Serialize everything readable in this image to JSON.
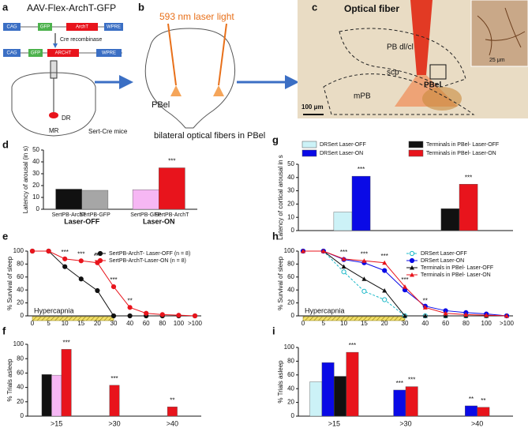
{
  "panels": {
    "a": {
      "letter": "a",
      "title": "AAV-Flex-ArchT-GFP",
      "construct_1": [
        "CAG",
        "GFP",
        "ArchT",
        "WPRE"
      ],
      "cre": "Cre recombinase",
      "construct_2": [
        "CAG",
        "GFP",
        "ARCHT",
        "WPRE"
      ],
      "regions": [
        "DR",
        "MR"
      ],
      "mice": "Sert-Cre mice"
    },
    "b": {
      "letter": "b",
      "laser": "593 nm laser light",
      "region": "PBel",
      "caption": "bilateral optical fibers in PBel"
    },
    "c": {
      "letter": "c",
      "fiber": "Optical fiber",
      "regions": [
        "PB dl/cl",
        "scp",
        "PBel",
        "mPB"
      ],
      "scale": "100 μm",
      "inset_scale": "25 μm"
    }
  },
  "chart_data": [
    {
      "type": "bar",
      "panel": "d",
      "ylabel": "Latency of arousal (in s)",
      "categories": [
        "SertPB-ArchT",
        "SertPB-GFP",
        "SertPB-GFP",
        "SertPB-ArchT"
      ],
      "groups": [
        "Laser-OFF",
        "Laser-ON"
      ],
      "values": [
        17,
        16,
        16.5,
        35
      ],
      "colors": [
        "#111111",
        "#a6a6a6",
        "#f6b7f4",
        "#e8141c"
      ],
      "significance": [
        null,
        null,
        null,
        "***"
      ],
      "ylim": [
        0,
        50
      ],
      "yticks": [
        0,
        10,
        20,
        30,
        40,
        50
      ]
    },
    {
      "type": "line",
      "panel": "e",
      "ylabel": "% Survival of sleep",
      "legend": "top-right",
      "categories": [
        "0",
        "5",
        "10",
        "15",
        "20",
        "30",
        "40",
        "60",
        "80",
        "100",
        ">100"
      ],
      "hypercapnia": {
        "label": "Hypercapnia",
        "until": "30"
      },
      "series": [
        {
          "name": "SertPB-ArchT- Laser-OFF (n = 8)",
          "color": "#111111",
          "marker": "circle",
          "values": [
            100,
            100,
            76,
            57,
            39,
            0,
            0,
            0,
            0,
            0,
            0
          ]
        },
        {
          "name": "SertPB-ArchT-Laser-ON (n = 8)",
          "color": "#e8141c",
          "marker": "circle",
          "values": [
            100,
            100,
            88,
            85,
            82,
            45,
            13,
            4,
            2,
            1,
            0
          ],
          "significance": [
            null,
            null,
            "***",
            "***",
            "***",
            "***",
            "**",
            null,
            null,
            null,
            null
          ]
        }
      ],
      "ylim": [
        0,
        100
      ],
      "yticks": [
        0,
        20,
        40,
        60,
        80,
        100
      ]
    },
    {
      "type": "bar",
      "panel": "f",
      "ylabel": "% Trials asleep",
      "categories": [
        ">15",
        ">30",
        ">40"
      ],
      "series": [
        {
          "color": "#111111",
          "values": [
            58,
            null,
            null
          ]
        },
        {
          "color": "#f6b7f4",
          "values": [
            57,
            null,
            null
          ]
        },
        {
          "color": "#e8141c",
          "values": [
            93,
            43,
            13
          ],
          "significance": [
            "***",
            "***",
            "**"
          ]
        }
      ],
      "ylim": [
        0,
        100
      ],
      "yticks": [
        0,
        20,
        40,
        60,
        80,
        100
      ]
    },
    {
      "type": "bar",
      "panel": "g",
      "ylabel": "Latency of cortical arousal in s",
      "series": [
        {
          "name": "DRSert Laser-OFF",
          "color": "#ccf2f7",
          "values": [
            14,
            null
          ]
        },
        {
          "name": "DRSert Laser-ON",
          "color": "#0a0ae6",
          "values": [
            41,
            null
          ],
          "significance": [
            "***",
            null
          ]
        },
        {
          "name": "Terminals in PBel- Laser-OFF",
          "color": "#111111",
          "values": [
            null,
            16.5
          ]
        },
        {
          "name": "Terminals in PBel- Laser-ON",
          "color": "#e8141c",
          "values": [
            null,
            35
          ],
          "significance": [
            null,
            "***"
          ]
        }
      ],
      "ylim": [
        0,
        50
      ],
      "yticks": [
        0,
        10,
        20,
        30,
        40,
        50
      ]
    },
    {
      "type": "line",
      "panel": "h",
      "ylabel": "% Survival of sleep",
      "legend": "top-right",
      "categories": [
        "0",
        "5",
        "10",
        "15",
        "20",
        "30",
        "40",
        "60",
        "80",
        "100",
        ">100"
      ],
      "hypercapnia": {
        "label": "Hypercapnia",
        "until": "30"
      },
      "series": [
        {
          "name": "DRSert Laser-OFF",
          "color": "#19b8c8",
          "marker": "circle",
          "style": "dashed",
          "values": [
            100,
            100,
            68,
            38,
            25,
            0,
            0,
            0,
            0,
            0,
            0
          ]
        },
        {
          "name": "DRSert Laser-ON",
          "color": "#0a0ae6",
          "marker": "circle",
          "values": [
            100,
            100,
            87,
            82,
            70,
            40,
            15,
            8,
            5,
            3,
            0
          ]
        },
        {
          "name": "Terminals in PBel- Laser-OFF",
          "color": "#111111",
          "marker": "triangle",
          "values": [
            100,
            100,
            76,
            57,
            39,
            0,
            0,
            0,
            0,
            0,
            0
          ]
        },
        {
          "name": "Terminals in PBel- Laser-ON",
          "color": "#e8141c",
          "marker": "triangle",
          "values": [
            100,
            100,
            88,
            85,
            82,
            45,
            13,
            4,
            2,
            1,
            0
          ],
          "significance": [
            null,
            null,
            "***",
            "***",
            "***",
            "***",
            "**",
            null,
            null,
            null,
            null
          ]
        }
      ],
      "ylim": [
        0,
        100
      ],
      "yticks": [
        0,
        20,
        40,
        60,
        80,
        100
      ]
    },
    {
      "type": "bar",
      "panel": "i",
      "ylabel": "% Trials asleep",
      "categories": [
        ">15",
        ">30",
        ">40"
      ],
      "series": [
        {
          "color": "#ccf2f7",
          "values": [
            50,
            null,
            null
          ]
        },
        {
          "color": "#0a0ae6",
          "values": [
            78,
            38,
            15
          ],
          "significance": [
            null,
            "***",
            "**"
          ]
        },
        {
          "color": "#111111",
          "values": [
            58,
            null,
            null
          ]
        },
        {
          "color": "#e8141c",
          "values": [
            93,
            43,
            13
          ],
          "significance": [
            "***",
            "***",
            "**"
          ]
        }
      ],
      "ylim": [
        0,
        100
      ],
      "yticks": [
        0,
        20,
        40,
        60,
        80,
        100
      ]
    }
  ]
}
